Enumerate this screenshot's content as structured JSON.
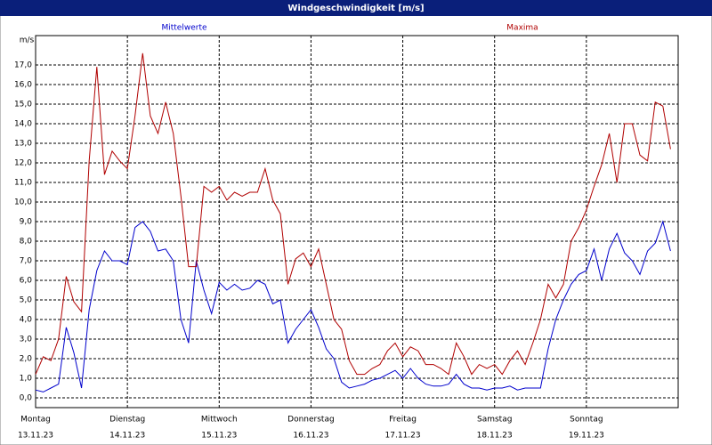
{
  "chart_data": {
    "type": "line",
    "title": "Windgeschwindigkeit [m/s]",
    "y_label": "m/s",
    "x": [
      0,
      2,
      4,
      6,
      8,
      10,
      12,
      14,
      16,
      18,
      20,
      22,
      24,
      26,
      28,
      30,
      32,
      34,
      36,
      38,
      40,
      42,
      44,
      46,
      48,
      50,
      52,
      54,
      56,
      58,
      60,
      62,
      64,
      66,
      68,
      70,
      72,
      74,
      76,
      78,
      80,
      82,
      84,
      86,
      88,
      90,
      92,
      94,
      96,
      98,
      100,
      102,
      104,
      106,
      108,
      110,
      112,
      114,
      116,
      118,
      120,
      122,
      124,
      126,
      128,
      130,
      132,
      134,
      136,
      138,
      140,
      142,
      144,
      146,
      148,
      150,
      152,
      154,
      156,
      158,
      160,
      162,
      164,
      166
    ],
    "series": [
      {
        "name": "Mittelwerte",
        "color": "#0000cc",
        "values": [
          0.4,
          0.3,
          0.5,
          0.7,
          3.6,
          2.3,
          0.5,
          4.5,
          6.5,
          7.5,
          7.0,
          7.0,
          6.8,
          8.7,
          9.0,
          8.5,
          7.5,
          7.6,
          7.0,
          4.0,
          2.8,
          7.0,
          5.5,
          4.3,
          5.9,
          5.5,
          5.8,
          5.5,
          5.6,
          6.0,
          5.8,
          4.8,
          5.0,
          2.8,
          3.5,
          4.0,
          4.5,
          3.6,
          2.5,
          2.0,
          0.8,
          0.5,
          0.6,
          0.7,
          0.9,
          1.0,
          1.2,
          1.4,
          1.0,
          1.5,
          1.0,
          0.7,
          0.6,
          0.6,
          0.7,
          1.2,
          0.7,
          0.5,
          0.5,
          0.4,
          0.5,
          0.5,
          0.6,
          0.4,
          0.5,
          0.5,
          0.5,
          2.5,
          4.0,
          5.0,
          5.8,
          6.3,
          6.5,
          7.6,
          6.0,
          7.6,
          8.4,
          7.4,
          7.0,
          6.3,
          7.5,
          7.9,
          9.0,
          7.5
        ]
      },
      {
        "name": "Maxima",
        "color": "#b00000",
        "values": [
          1.2,
          2.1,
          1.9,
          3.0,
          6.2,
          4.9,
          4.4,
          12.1,
          16.9,
          11.4,
          12.6,
          12.1,
          11.7,
          14.4,
          17.6,
          14.4,
          13.5,
          15.1,
          13.5,
          10.3,
          6.7,
          6.7,
          10.8,
          10.5,
          10.8,
          10.1,
          10.5,
          10.3,
          10.5,
          10.5,
          11.7,
          10.1,
          9.4,
          5.8,
          7.1,
          7.4,
          6.7,
          7.6,
          5.8,
          4.0,
          3.5,
          1.9,
          1.2,
          1.2,
          1.5,
          1.7,
          2.4,
          2.8,
          2.1,
          2.6,
          2.4,
          1.7,
          1.7,
          1.5,
          1.2,
          2.8,
          2.1,
          1.2,
          1.7,
          1.5,
          1.7,
          1.2,
          1.9,
          2.4,
          1.7,
          2.8,
          4.0,
          5.8,
          5.1,
          5.8,
          8.0,
          8.7,
          9.6,
          10.8,
          11.9,
          13.5,
          11.0,
          14.0,
          14.0,
          12.4,
          12.1,
          15.1,
          14.9,
          12.7
        ]
      }
    ],
    "xlim": [
      0,
      168
    ],
    "xticks": [
      {
        "value": 0,
        "label": "Montag"
      },
      {
        "value": 24,
        "label": "Dienstag"
      },
      {
        "value": 48,
        "label": "Mittwoch"
      },
      {
        "value": 72,
        "label": "Donnerstag"
      },
      {
        "value": 96,
        "label": "Freitag"
      },
      {
        "value": 120,
        "label": "Samstag"
      },
      {
        "value": 144,
        "label": "Sonntag"
      }
    ],
    "xtick_dates": [
      "13.11.23",
      "14.11.23",
      "15.11.23",
      "16.11.23",
      "17.11.23",
      "18.11.23",
      "19.11.23"
    ],
    "ylim": [
      -0.5,
      18.5
    ],
    "yticks": [
      {
        "value": 0,
        "label": "0,0"
      },
      {
        "value": 1,
        "label": "1,0"
      },
      {
        "value": 2,
        "label": "2,0"
      },
      {
        "value": 3,
        "label": "3,0"
      },
      {
        "value": 4,
        "label": "4,0"
      },
      {
        "value": 5,
        "label": "5,0"
      },
      {
        "value": 6,
        "label": "6,0"
      },
      {
        "value": 7,
        "label": "7,0"
      },
      {
        "value": 8,
        "label": "8,0"
      },
      {
        "value": 9,
        "label": "9,0"
      },
      {
        "value": 10,
        "label": "10,0"
      },
      {
        "value": 11,
        "label": "11,0"
      },
      {
        "value": 12,
        "label": "12,0"
      },
      {
        "value": 13,
        "label": "13,0"
      },
      {
        "value": 14,
        "label": "14,0"
      },
      {
        "value": 15,
        "label": "15,0"
      },
      {
        "value": 16,
        "label": "16,0"
      },
      {
        "value": 17,
        "label": "17,0"
      }
    ],
    "grid": true
  }
}
